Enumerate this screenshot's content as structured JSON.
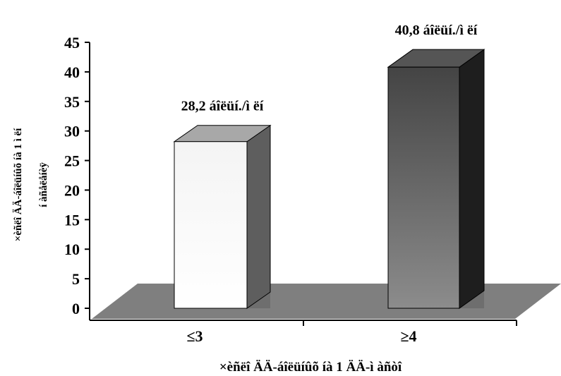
{
  "chart_data": {
    "type": "bar",
    "categories": [
      "≤3",
      "≥4"
    ],
    "values": [
      28.2,
      40.8
    ],
    "data_labels": [
      "28,2 áîëüí./ì ëí",
      "40,8 áîëüí./ì ëí"
    ],
    "xlabel": "×èñëî ÄÄ-áîëüíûõ íà 1 ÄÄ-ì àñòî",
    "ylabel": [
      "×èñëî  ÄÄ-áîëüíûõ íà 1 ì ëí",
      "í àñåëåíèÿ"
    ],
    "ylim": [
      0,
      45
    ],
    "yticks": [
      0,
      5,
      10,
      15,
      20,
      25,
      30,
      35,
      40,
      45
    ],
    "colors": {
      "bar1_front_top": "#f4f4f4",
      "bar1_front_bottom": "#ffffff",
      "bar1_side": "#5e5e5e",
      "bar1_top": "#a8a8a8",
      "bar2_front_top": "#444444",
      "bar2_front_bottom": "#8c8c8c",
      "bar2_side": "#1e1e1e",
      "bar2_top": "#555555",
      "floor": "#7f7f7f",
      "shadow": "#6e6e6e"
    }
  }
}
